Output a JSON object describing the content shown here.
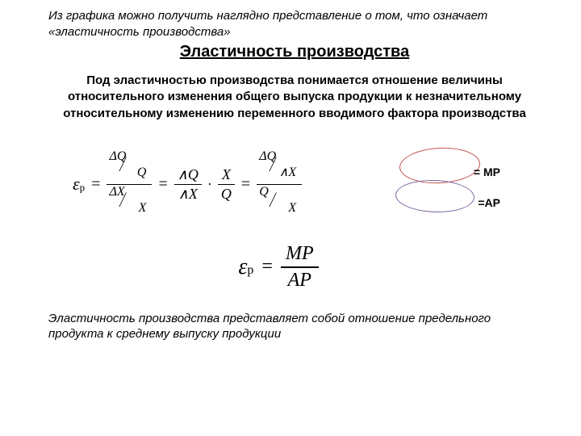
{
  "intro": "Из графика можно получить наглядно представление о том, что означает «эластичность производства»",
  "title": "Эластичность производства",
  "definition": "Под эластичностью производства понимается отношение величины относительного изменения общего выпуска продукции к незначительному относительному изменению переменного вводимого фактора производства",
  "formula1": {
    "epsilon": "ε",
    "subscript": "р",
    "eq": "=",
    "dQ": "ΔQ",
    "Q": "Q",
    "dX": "ΔX",
    "X": "X",
    "wedgeQ": "∧Q",
    "wedgeX": "∧X",
    "dot": "·"
  },
  "annotations": {
    "mp": "= MP",
    "ap": "=AP"
  },
  "ellipses": {
    "red_color": "#c0504d",
    "purple_color": "#8064a2"
  },
  "formula2": {
    "epsilon": "ε",
    "subscript": "р",
    "eq": "=",
    "numerator": "MP",
    "denominator": "AP"
  },
  "conclusion": "Эластичность производства представляет собой отношение предельного продукта к среднему выпуску продукции"
}
